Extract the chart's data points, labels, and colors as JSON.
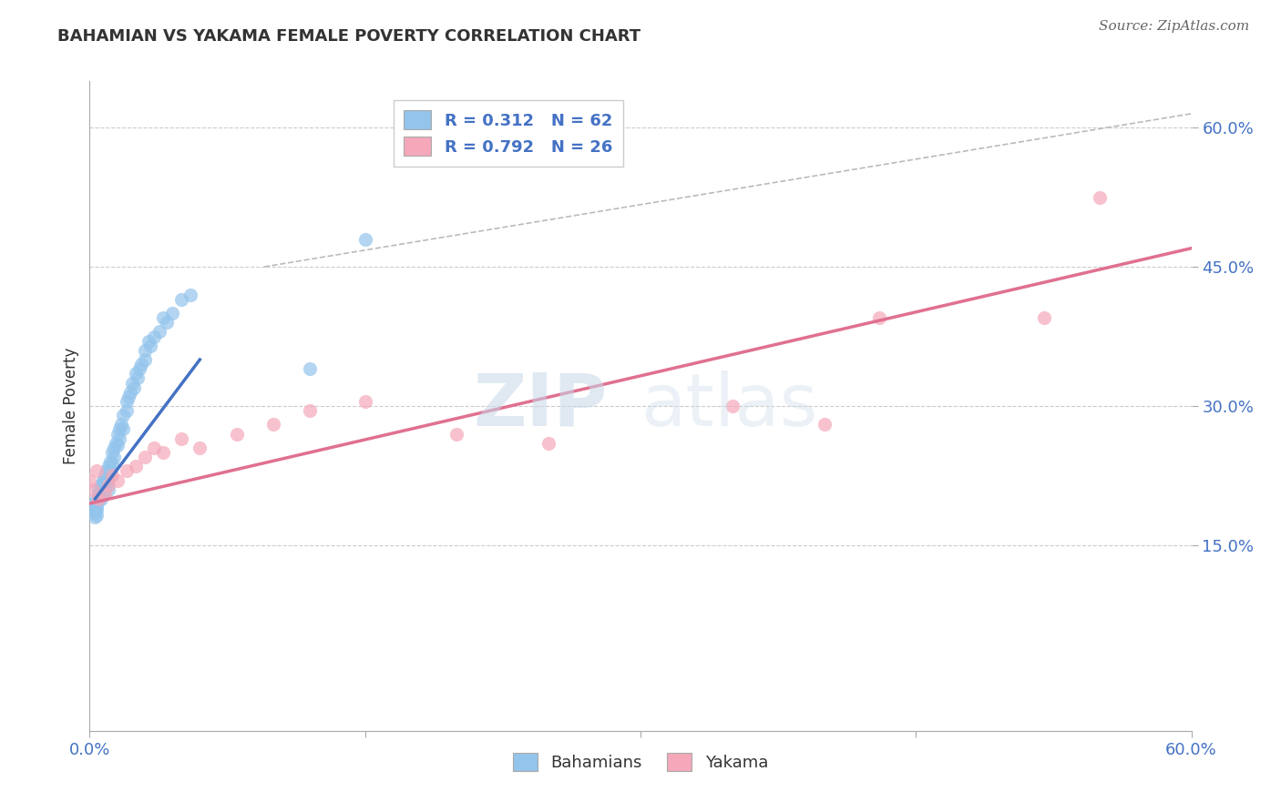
{
  "title": "BAHAMIAN VS YAKAMA FEMALE POVERTY CORRELATION CHART",
  "source": "Source: ZipAtlas.com",
  "ylabel": "Female Poverty",
  "xlim": [
    0.0,
    0.6
  ],
  "ylim": [
    -0.05,
    0.65
  ],
  "x_ticks": [
    0.0,
    0.15,
    0.3,
    0.45,
    0.6
  ],
  "x_tick_labels": [
    "0.0%",
    "",
    "",
    "",
    "60.0%"
  ],
  "y_ticks": [
    0.15,
    0.3,
    0.45,
    0.6
  ],
  "y_tick_labels": [
    "15.0%",
    "30.0%",
    "45.0%",
    "60.0%"
  ],
  "bahamian_color": "#93C4EC",
  "yakama_color": "#F4A8BA",
  "bahamian_line_color": "#4472C4",
  "yakama_line_color": "#E07090",
  "ref_line_color": "#BBBBBB",
  "R_bahamian": 0.312,
  "N_bahamian": 62,
  "R_yakama": 0.792,
  "N_yakama": 26,
  "legend_label_bahamian": "Bahamians",
  "legend_label_yakama": "Yakama",
  "watermark_zip": "ZIP",
  "watermark_atlas": "atlas",
  "bahamian_x": [
    0.003,
    0.003,
    0.003,
    0.003,
    0.004,
    0.004,
    0.004,
    0.004,
    0.005,
    0.005,
    0.005,
    0.006,
    0.006,
    0.006,
    0.007,
    0.007,
    0.007,
    0.008,
    0.008,
    0.009,
    0.009,
    0.01,
    0.01,
    0.01,
    0.01,
    0.011,
    0.011,
    0.012,
    0.012,
    0.013,
    0.013,
    0.014,
    0.015,
    0.015,
    0.016,
    0.016,
    0.017,
    0.018,
    0.018,
    0.02,
    0.02,
    0.021,
    0.022,
    0.023,
    0.024,
    0.025,
    0.026,
    0.027,
    0.028,
    0.03,
    0.03,
    0.032,
    0.033,
    0.035,
    0.038,
    0.04,
    0.042,
    0.045,
    0.05,
    0.055,
    0.12,
    0.15
  ],
  "bahamian_y": [
    0.195,
    0.19,
    0.185,
    0.18,
    0.2,
    0.192,
    0.188,
    0.182,
    0.21,
    0.205,
    0.198,
    0.215,
    0.208,
    0.2,
    0.22,
    0.218,
    0.205,
    0.225,
    0.22,
    0.23,
    0.215,
    0.235,
    0.228,
    0.222,
    0.21,
    0.24,
    0.23,
    0.25,
    0.238,
    0.255,
    0.245,
    0.26,
    0.27,
    0.258,
    0.275,
    0.265,
    0.28,
    0.29,
    0.275,
    0.305,
    0.295,
    0.31,
    0.315,
    0.325,
    0.32,
    0.335,
    0.33,
    0.34,
    0.345,
    0.36,
    0.35,
    0.37,
    0.365,
    0.375,
    0.38,
    0.395,
    0.39,
    0.4,
    0.415,
    0.42,
    0.34,
    0.48
  ],
  "yakama_x": [
    0.0,
    0.002,
    0.004,
    0.005,
    0.008,
    0.01,
    0.012,
    0.015,
    0.02,
    0.025,
    0.03,
    0.035,
    0.04,
    0.05,
    0.06,
    0.08,
    0.1,
    0.12,
    0.15,
    0.2,
    0.25,
    0.35,
    0.4,
    0.43,
    0.52,
    0.55
  ],
  "yakama_y": [
    0.22,
    0.21,
    0.23,
    0.2,
    0.205,
    0.215,
    0.225,
    0.22,
    0.23,
    0.235,
    0.245,
    0.255,
    0.25,
    0.265,
    0.255,
    0.27,
    0.28,
    0.295,
    0.305,
    0.27,
    0.26,
    0.3,
    0.28,
    0.395,
    0.395,
    0.525
  ],
  "blue_line_x": [
    0.003,
    0.06
  ],
  "blue_line_y": [
    0.2,
    0.35
  ],
  "pink_line_x": [
    0.0,
    0.6
  ],
  "pink_line_y": [
    0.195,
    0.47
  ],
  "ref_line_x": [
    0.095,
    0.6
  ],
  "ref_line_y": [
    0.45,
    0.615
  ]
}
